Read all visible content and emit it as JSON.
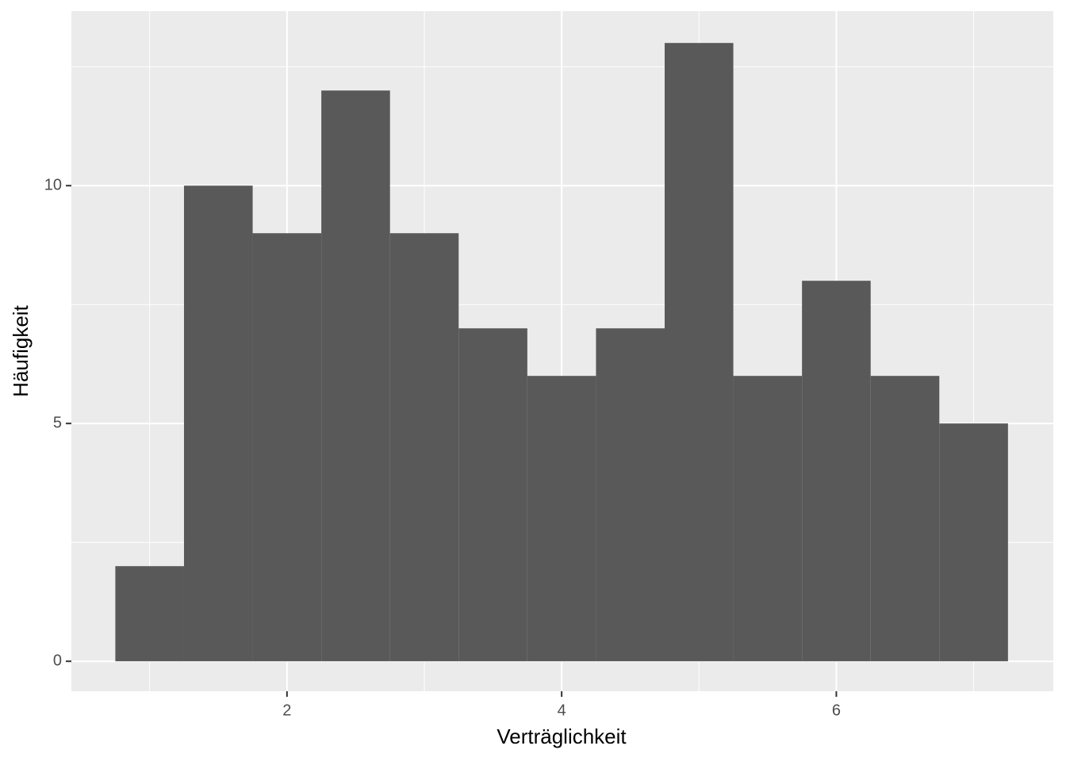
{
  "chart_data": {
    "type": "histogram",
    "x_label": "Verträglichkeit",
    "y_label": "Häufigkeit",
    "bins": [
      0.75,
      1.25,
      1.75,
      2.25,
      2.75,
      3.25,
      3.75,
      4.25,
      4.75,
      5.25,
      5.75,
      6.25,
      6.75,
      7.25
    ],
    "counts": [
      2,
      10,
      9,
      12,
      9,
      7,
      6,
      7,
      13,
      6,
      8,
      6,
      5
    ],
    "color": "#595959",
    "xlim": [
      0.43,
      7.58
    ],
    "xticks": [
      2,
      4,
      6
    ],
    "minor_xticks": [
      1,
      3,
      5,
      7
    ],
    "ylim": [
      -0.63,
      13.67
    ],
    "yticks": [
      0,
      5,
      10
    ],
    "minor_yticks": [
      2.5,
      7.5,
      12.5
    ],
    "grid": true,
    "panel_color": "#ebebeb"
  }
}
